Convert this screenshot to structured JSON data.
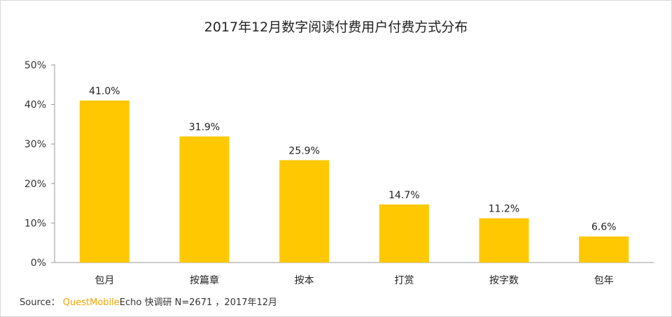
{
  "title": "2017年12月数字阅读付费用户付费方式分布",
  "chart_data": {
    "type": "bar",
    "title": "2017年12月数字阅读付费用户付费方式分布",
    "categories": [
      "包月",
      "按篇章",
      "按本",
      "打赏",
      "按字数",
      "包年"
    ],
    "values": [
      41.0,
      31.9,
      25.9,
      14.7,
      11.2,
      6.6
    ],
    "value_labels": [
      "41.0%",
      "31.9%",
      "25.9%",
      "14.7%",
      "11.2%",
      "6.6%"
    ],
    "ylim": [
      0,
      50
    ],
    "yticks": [
      0,
      10,
      20,
      30,
      40,
      50
    ],
    "ytick_labels": [
      "0%",
      "10%",
      "20%",
      "30%",
      "40%",
      "50%"
    ],
    "bar_color": "#ffc800",
    "grid": false,
    "xlabel": "",
    "ylabel": ""
  },
  "source": {
    "prefix": "Source：",
    "brand": "QuestMobile",
    "rest": "Echo 快调研 N=2671 ，2017年12月"
  }
}
